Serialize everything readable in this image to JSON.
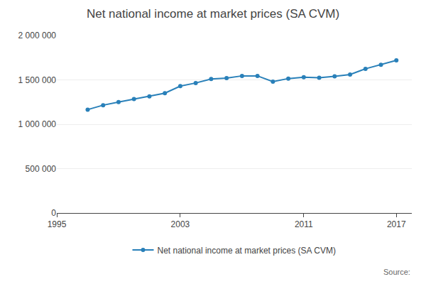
{
  "chart_data": {
    "type": "line",
    "title": "Net national income at market prices (SA CVM)",
    "x": [
      1997,
      1998,
      1999,
      2000,
      2001,
      2002,
      2003,
      2004,
      2005,
      2006,
      2007,
      2008,
      2009,
      2010,
      2011,
      2012,
      2013,
      2014,
      2015,
      2016,
      2017
    ],
    "series": [
      {
        "name": "Net national income at market prices (SA CVM)",
        "color": "#2980b9",
        "marker": "circle",
        "values": [
          1165000,
          1215000,
          1250000,
          1285000,
          1315000,
          1350000,
          1430000,
          1465000,
          1510000,
          1520000,
          1545000,
          1545000,
          1480000,
          1515000,
          1530000,
          1525000,
          1540000,
          1560000,
          1625000,
          1670000,
          1720000
        ]
      }
    ],
    "xlim": [
      1995,
      2018
    ],
    "xticks": [
      1995,
      2003,
      2011,
      2017
    ],
    "ylim": [
      0,
      2000000
    ],
    "yticks": [
      0,
      {
        "value": 500000,
        "label": "500 000"
      },
      {
        "value": 1000000,
        "label": "1 000 000"
      },
      {
        "value": 1500000,
        "label": "1 500 000"
      },
      {
        "value": 2000000,
        "label": "2 000 000"
      }
    ],
    "grid": "y",
    "legend": "bottom",
    "annotations": [
      "Source:"
    ]
  }
}
